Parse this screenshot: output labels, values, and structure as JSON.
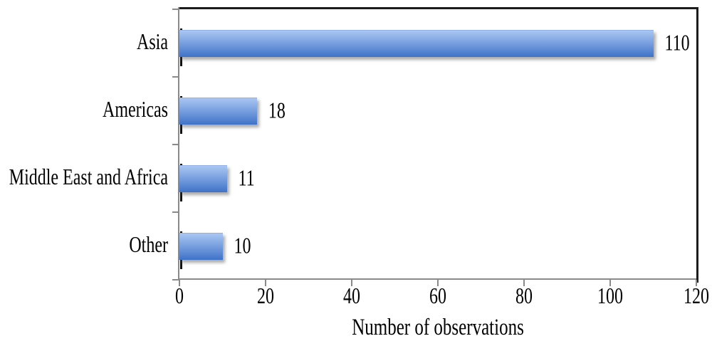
{
  "chart_data": {
    "type": "bar",
    "orientation": "horizontal",
    "title": "",
    "categories": [
      "Asia",
      "Americas",
      "Middle East and Africa",
      "Other"
    ],
    "values": [
      110,
      18,
      11,
      10
    ],
    "value_labels": [
      "110",
      "18",
      "11",
      "10"
    ],
    "xlabel": "Number of observations",
    "ylabel": "",
    "xlim": [
      0,
      120
    ],
    "xticks": [
      0,
      20,
      40,
      60,
      80,
      100,
      120
    ],
    "grid": false,
    "legend": false,
    "layout": {
      "bar_labels_position": "right-of-bar",
      "ticks_outside": true,
      "plot_border_sides": "top-right"
    },
    "colors": {
      "bar_gradient_top": "#a9c6f2",
      "bar_gradient_mid": "#7099dc",
      "bar_gradient_bottom": "#3e72c8",
      "axis_line": "#8a8a8a",
      "plot_border": "#1c1c1c",
      "bar_base_mark": "#111111",
      "text": "#000000",
      "background": "#ffffff"
    }
  }
}
